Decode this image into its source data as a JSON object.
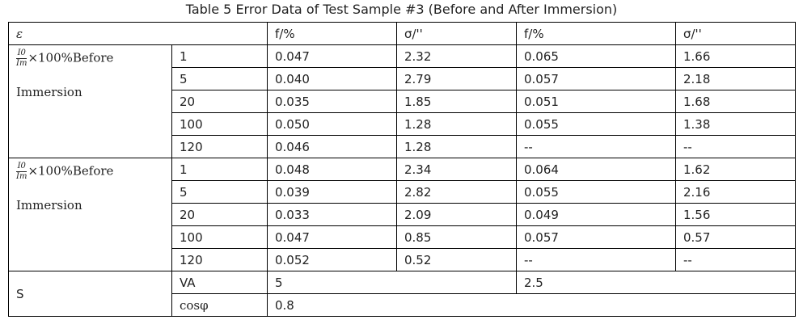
{
  "title": "Table 5 Error Data of Test Sample #3 (Before and After Immersion)",
  "header": [
    "ε",
    "f/%",
    "σ/''",
    "f/%",
    "σ/''"
  ],
  "groups": [
    {
      "numerator": "I0",
      "denominator": "Im",
      "label": "×100%Before",
      "label2": "Immersion",
      "rows": [
        [
          "1",
          "0.047",
          "2.32",
          "0.065",
          "1.66"
        ],
        [
          "5",
          "0.040",
          "2.79",
          "0.057",
          "2.18"
        ],
        [
          "20",
          "0.035",
          "1.85",
          "0.051",
          "1.68"
        ],
        [
          "100",
          "0.050",
          "1.28",
          "0.055",
          "1.38"
        ],
        [
          "120",
          "0.046",
          "1.28",
          "--",
          "--"
        ]
      ]
    },
    {
      "numerator": "I0",
      "denominator": "Im",
      "label": "×100%Before",
      "label2": "Immersion",
      "rows": [
        [
          "1",
          "0.048",
          "2.34",
          "0.064",
          "1.62"
        ],
        [
          "5",
          "0.039",
          "2.82",
          "0.055",
          "2.16"
        ],
        [
          "20",
          "0.033",
          "2.09",
          "0.049",
          "1.56"
        ],
        [
          "100",
          "0.047",
          "0.85",
          "0.057",
          "0.57"
        ],
        [
          "120",
          "0.052",
          "0.52",
          "--",
          "--"
        ]
      ]
    }
  ],
  "footer": {
    "label": "S",
    "rows": [
      [
        "VA",
        "5",
        "2.5"
      ],
      [
        "cosφ",
        "0.8"
      ]
    ]
  }
}
